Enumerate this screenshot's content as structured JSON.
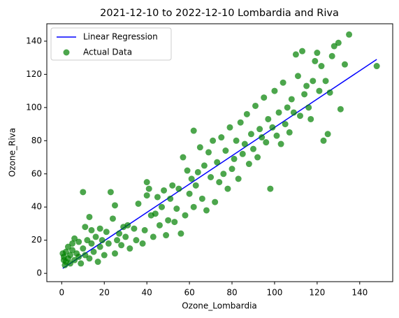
{
  "chart_data": {
    "type": "scatter",
    "title": "2021-12-10 to 2022-12-10 Lombardia and Riva",
    "x_label": "Ozone_Lombardia",
    "y_label": "Ozone_Riva",
    "xlim": [
      -7,
      155.5
    ],
    "ylim": [
      -5,
      150.5
    ],
    "xticks": [
      0,
      20,
      40,
      60,
      80,
      100,
      120,
      140
    ],
    "yticks": [
      0,
      20,
      40,
      60,
      80,
      100,
      120,
      140
    ],
    "legend": "upper left",
    "series": [
      {
        "name": "Linear Regression",
        "color": "#0000ff",
        "type": "line",
        "x": [
          0.5,
          148
        ],
        "values": [
          3,
          129
        ]
      },
      {
        "name": "Actual Data",
        "color": "#008000",
        "x": [
          0.5,
          1,
          1,
          1.5,
          2,
          2,
          3,
          3,
          4,
          4,
          5,
          5,
          6,
          6,
          7,
          8,
          8,
          9,
          10,
          10,
          11,
          11,
          12,
          13,
          13,
          14,
          14,
          15,
          16,
          17,
          18,
          18,
          19,
          20,
          21,
          22,
          23,
          24,
          25,
          25,
          26,
          27,
          28,
          29,
          30,
          31,
          32,
          34,
          35,
          36,
          38,
          39,
          40,
          40,
          41,
          42,
          43,
          44,
          45,
          46,
          47,
          48,
          49,
          50,
          51,
          52,
          53,
          54,
          55,
          56,
          57,
          58,
          59,
          60,
          61,
          62,
          62,
          63,
          64,
          65,
          66,
          67,
          68,
          69,
          70,
          71,
          72,
          73,
          74,
          75,
          76,
          77,
          78,
          79,
          80,
          81,
          82,
          83,
          84,
          85,
          86,
          87,
          88,
          89,
          90,
          91,
          92,
          93,
          94,
          95,
          96,
          97,
          98,
          99,
          100,
          101,
          102,
          103,
          104,
          105,
          106,
          107,
          108,
          109,
          110,
          111,
          112,
          113,
          114,
          115,
          116,
          117,
          118,
          119,
          120,
          121,
          122,
          123,
          124,
          125,
          126,
          127,
          128,
          130,
          131,
          133,
          135,
          148
        ],
        "values": [
          12,
          10,
          8,
          5,
          13,
          7,
          9,
          16,
          11,
          6,
          14,
          18,
          8,
          21,
          12,
          19,
          10,
          6,
          15,
          49,
          11,
          28,
          20,
          34,
          9,
          18,
          26,
          13,
          22,
          7,
          16,
          27,
          20,
          11,
          25,
          18,
          49,
          33,
          12,
          41,
          20,
          24,
          17,
          28,
          22,
          29,
          15,
          27,
          20,
          42,
          18,
          26,
          55,
          47,
          51,
          35,
          22,
          36,
          46,
          29,
          40,
          50,
          23,
          32,
          45,
          53,
          31,
          39,
          51,
          24,
          70,
          35,
          62,
          48,
          57,
          86,
          40,
          53,
          61,
          76,
          45,
          65,
          38,
          73,
          58,
          80,
          43,
          67,
          55,
          82,
          60,
          74,
          51,
          88,
          63,
          69,
          80,
          57,
          91,
          72,
          78,
          96,
          66,
          84,
          75,
          101,
          70,
          87,
          82,
          106,
          79,
          93,
          51,
          88,
          110,
          83,
          97,
          78,
          115,
          90,
          100,
          85,
          105,
          97,
          132,
          119,
          95,
          134,
          108,
          113,
          100,
          93,
          116,
          128,
          133,
          110,
          125,
          80,
          116,
          84,
          109,
          131,
          137,
          139,
          99,
          126,
          144,
          125
        ]
      }
    ]
  }
}
